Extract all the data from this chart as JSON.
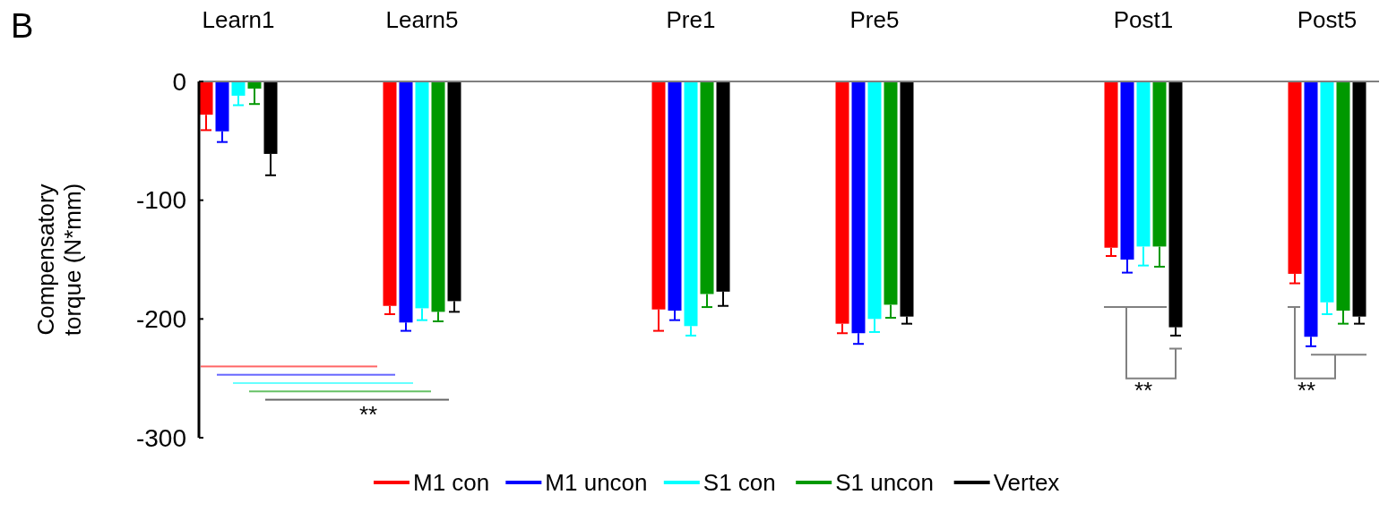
{
  "chart_data": {
    "type": "bar",
    "title": "B",
    "ylabel": "Compensatory torque (N*mm)",
    "categories": [
      "Learn1",
      "Learn5",
      "Pre1",
      "Pre5",
      "Post1",
      "Post5"
    ],
    "series": [
      {
        "name": "M1 con",
        "color": "#ff0000",
        "values": [
          -28,
          -189,
          -192,
          -204,
          -140,
          -162
        ],
        "errors": [
          [
            -41,
            -28
          ],
          [
            -196,
            -189
          ],
          [
            -210,
            -192
          ],
          [
            -212,
            -204
          ],
          [
            -147,
            -140
          ],
          [
            -170,
            -162
          ]
        ]
      },
      {
        "name": "M1 uncon",
        "color": "#0000ff",
        "values": [
          -42,
          -203,
          -193,
          -212,
          -150,
          -215
        ],
        "errors": [
          [
            -51,
            -42
          ],
          [
            -210,
            -203
          ],
          [
            -201,
            -193
          ],
          [
            -221,
            -212
          ],
          [
            -161,
            -150
          ],
          [
            -223,
            -215
          ]
        ]
      },
      {
        "name": "S1 con",
        "color": "#00ffff",
        "values": [
          -12,
          -191,
          -206,
          -200,
          -139,
          -186
        ],
        "errors": [
          [
            -20,
            -12
          ],
          [
            -201,
            -191
          ],
          [
            -214,
            -206
          ],
          [
            -211,
            -200
          ],
          [
            -155,
            -139
          ],
          [
            -196,
            -186
          ]
        ]
      },
      {
        "name": "S1 uncon",
        "color": "#009900",
        "values": [
          -6,
          -194,
          -179,
          -188,
          -139,
          -193
        ],
        "errors": [
          [
            -19,
            -6
          ],
          [
            -202,
            -194
          ],
          [
            -190,
            -179
          ],
          [
            -199,
            -188
          ],
          [
            -156,
            -139
          ],
          [
            -204,
            -193
          ]
        ]
      },
      {
        "name": "Vertex",
        "color": "#000000",
        "values": [
          -61,
          -185,
          -177,
          -198,
          -207,
          -198
        ],
        "errors": [
          [
            -79,
            -61
          ],
          [
            -194,
            -185
          ],
          [
            -189,
            -177
          ],
          [
            -204,
            -198
          ],
          [
            -214,
            -207
          ],
          [
            -204,
            -198
          ]
        ]
      }
    ],
    "ylim": [
      -300,
      0
    ],
    "yticks": [
      0,
      -100,
      -200,
      -300
    ],
    "grid": false,
    "legend": "bottom",
    "annotations": [
      "**",
      "**",
      "**"
    ]
  }
}
